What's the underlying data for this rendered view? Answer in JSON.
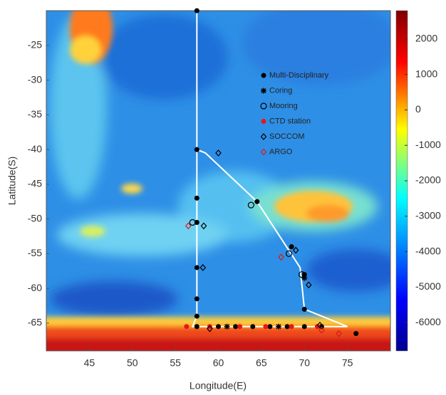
{
  "chart_data": {
    "type": "map",
    "x_label": "Longitude(E)",
    "y_label": "Latitude(S)",
    "xlim": [
      40,
      80
    ],
    "xticks": [
      45,
      50,
      55,
      60,
      65,
      70,
      75
    ],
    "ylim": [
      -69,
      -20
    ],
    "yticks": [
      -25,
      -30,
      -35,
      -40,
      -45,
      -50,
      -55,
      -60,
      -65
    ],
    "colorbar": {
      "clim": [
        -6800,
        2800
      ],
      "ticks": [
        2000,
        1000,
        0,
        -1000,
        -2000,
        -3000,
        -4000,
        -5000,
        -6000
      ]
    },
    "track": {
      "color": "#ffffff",
      "x": [
        57.5,
        57.5,
        58.5,
        64.5,
        69.5,
        70,
        75,
        57,
        57.5,
        57.5
      ],
      "y": [
        -20,
        -40,
        -40.5,
        -47.5,
        -57,
        -63,
        -65.5,
        -65.5,
        -64,
        -40
      ]
    },
    "series": [
      {
        "name": "Multi-Disciplinary",
        "marker": "dot",
        "color": "#000000",
        "x": [
          57.5,
          57.5,
          57.5,
          57.5,
          57.5,
          57.5,
          57.5,
          64.5,
          68.5,
          70,
          70,
          57.5,
          60,
          62,
          64,
          66,
          68,
          70,
          72,
          76
        ],
        "y": [
          -20,
          -40,
          -47,
          -50.5,
          -57,
          -61.5,
          -64,
          -47.5,
          -54,
          -58,
          -63,
          -65.5,
          -65.5,
          -65.5,
          -65.5,
          -65.5,
          -65.5,
          -65.5,
          -65.5,
          -66.5
        ]
      },
      {
        "name": "Coring",
        "marker": "star",
        "color": "#000000",
        "x": [
          70,
          61,
          67
        ],
        "y": [
          -58.5,
          -65.5,
          -65.5
        ]
      },
      {
        "name": "Mooring",
        "marker": "circle",
        "color": "#000000",
        "x": [
          63.8,
          57,
          68.2,
          69.7
        ],
        "y": [
          -48,
          -50.5,
          -55,
          -58
        ]
      },
      {
        "name": "CTD station",
        "marker": "dot",
        "color": "#e8161b",
        "x": [
          56.3,
          59,
          62.5,
          65.5,
          68.5,
          71.5
        ],
        "y": [
          -65.5,
          -65.5,
          -65.5,
          -65.5,
          -65.5,
          -65.5
        ]
      },
      {
        "name": "SOCCOM",
        "marker": "diamond",
        "color": "#000000",
        "x": [
          58.3,
          60,
          58.2,
          69,
          70.5,
          71.8,
          59
        ],
        "y": [
          -51,
          -40.5,
          -57,
          -54.5,
          -59.5,
          -65.3,
          -65.8
        ]
      },
      {
        "name": "ARGO",
        "marker": "diamond",
        "color": "#d41b1b",
        "x": [
          56.5,
          67.3,
          72,
          74
        ],
        "y": [
          -51,
          -55.5,
          -66,
          -66.5
        ]
      }
    ]
  }
}
